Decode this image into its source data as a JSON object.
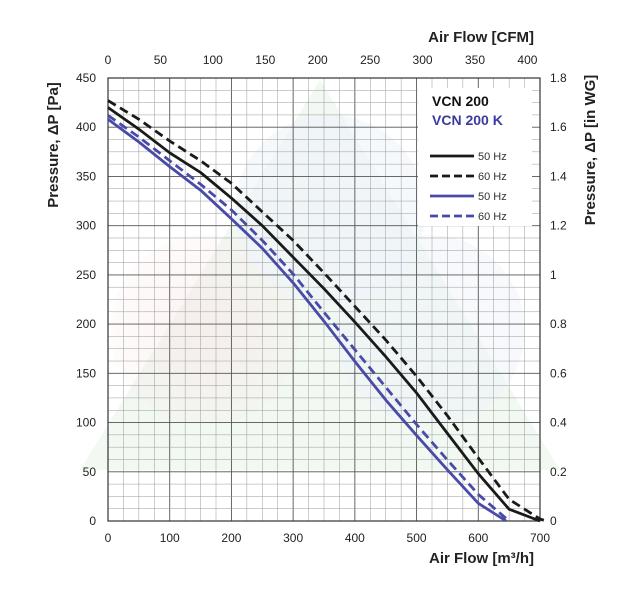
{
  "chart_data": {
    "type": "line",
    "x_bottom": {
      "label": "Air Flow [m³/h]",
      "range": [
        0,
        700
      ],
      "ticks": [
        0,
        100,
        200,
        300,
        400,
        500,
        600,
        700
      ]
    },
    "x_top": {
      "label": "Air Flow [CFM]",
      "range": [
        0,
        412
      ],
      "ticks": [
        0,
        50,
        100,
        150,
        200,
        250,
        300,
        350,
        400
      ]
    },
    "y_left": {
      "label": "Pressure, ΔP [Pa]",
      "range": [
        0,
        450
      ],
      "ticks": [
        0,
        50,
        100,
        150,
        200,
        250,
        300,
        350,
        400,
        450
      ]
    },
    "y_right": {
      "label": "Pressure, ΔP [in WG]",
      "range": [
        0,
        1.8
      ],
      "ticks": [
        "0",
        "0.2",
        "0.4",
        "0.6",
        "0.8",
        "1",
        "1.2",
        "1.4",
        "1.6",
        "1.8"
      ]
    },
    "grid": true,
    "legend_placement": "top-right",
    "legend_groups": [
      {
        "title": "VCN 200",
        "color": "#111111"
      },
      {
        "title": "VCN 200 K",
        "color": "#3a3aa0"
      }
    ],
    "series": [
      {
        "name": "50 Hz",
        "model": "VCN 200",
        "color": "#1a1a1a",
        "dash": false,
        "x": [
          0,
          50,
          100,
          150,
          200,
          250,
          300,
          350,
          400,
          450,
          500,
          550,
          600,
          650,
          700
        ],
        "y": [
          420,
          398,
          374,
          354,
          328,
          300,
          268,
          236,
          202,
          167,
          130,
          89,
          48,
          12,
          0
        ]
      },
      {
        "name": "60 Hz",
        "model": "VCN 200",
        "color": "#1a1a1a",
        "dash": true,
        "x": [
          0,
          50,
          100,
          150,
          200,
          250,
          300,
          350,
          400,
          450,
          500,
          550,
          600,
          650,
          700,
          710
        ],
        "y": [
          427,
          408,
          386,
          366,
          343,
          314,
          285,
          252,
          218,
          184,
          147,
          107,
          64,
          22,
          2,
          0
        ]
      },
      {
        "name": "50 Hz",
        "model": "VCN 200 K",
        "color": "#4a4aa8",
        "dash": false,
        "x": [
          0,
          50,
          100,
          150,
          200,
          250,
          300,
          350,
          400,
          450,
          500,
          550,
          600,
          645
        ],
        "y": [
          408,
          385,
          360,
          336,
          307,
          277,
          242,
          203,
          162,
          123,
          87,
          52,
          18,
          0
        ]
      },
      {
        "name": "60 Hz",
        "model": "VCN 200 K",
        "color": "#4a4aa8",
        "dash": true,
        "x": [
          0,
          50,
          100,
          150,
          200,
          250,
          300,
          350,
          400,
          450,
          500,
          550,
          600,
          650
        ],
        "y": [
          412,
          390,
          366,
          342,
          316,
          285,
          251,
          212,
          174,
          136,
          98,
          62,
          27,
          0
        ]
      }
    ]
  }
}
